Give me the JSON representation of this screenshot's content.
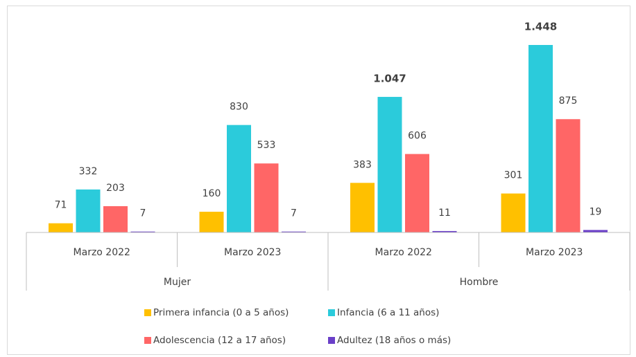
{
  "chart_data": {
    "type": "bar",
    "categories": [
      "Marzo 2022",
      "Marzo 2023",
      "Marzo 2022",
      "Marzo 2023"
    ],
    "groups": [
      "Mujer",
      "Hombre"
    ],
    "series": [
      {
        "name": "Primera infancia (0 a 5 años)",
        "color": "#ffc000",
        "values": [
          71,
          160,
          383,
          301
        ]
      },
      {
        "name": "Infancia (6 a 11 años)",
        "color": "#2bcbdb",
        "values": [
          332,
          830,
          1047,
          1448
        ],
        "value_labels": [
          "332",
          "830",
          "1.047",
          "1.448"
        ]
      },
      {
        "name": "Adolescencia (12 a 17 años)",
        "color": "#ff6666",
        "values": [
          203,
          533,
          606,
          875
        ]
      },
      {
        "name": "Adultez (18 años o más)",
        "color": "#6a3fc8",
        "values": [
          7,
          7,
          11,
          19
        ]
      }
    ],
    "legend": "bottom"
  }
}
